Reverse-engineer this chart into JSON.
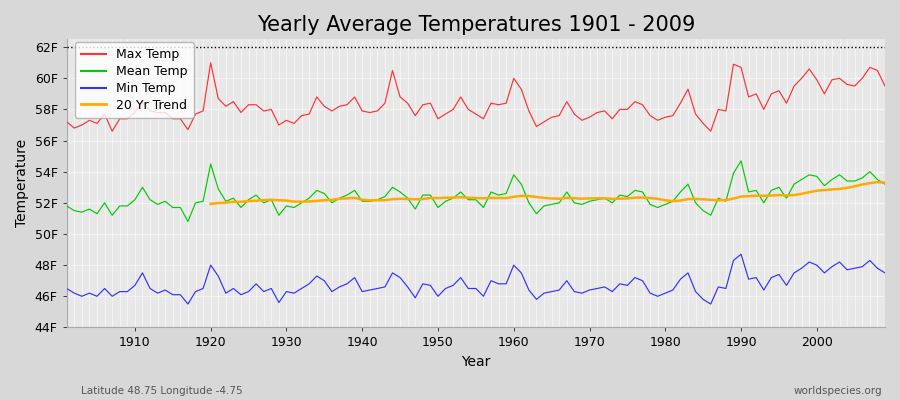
{
  "title": "Yearly Average Temperatures 1901 - 2009",
  "xlabel": "Year",
  "ylabel": "Temperature",
  "subtitle_left": "Latitude 48.75 Longitude -4.75",
  "subtitle_right": "worldspecies.org",
  "years": [
    1901,
    1902,
    1903,
    1904,
    1905,
    1906,
    1907,
    1908,
    1909,
    1910,
    1911,
    1912,
    1913,
    1914,
    1915,
    1916,
    1917,
    1918,
    1919,
    1920,
    1921,
    1922,
    1923,
    1924,
    1925,
    1926,
    1927,
    1928,
    1929,
    1930,
    1931,
    1932,
    1933,
    1934,
    1935,
    1936,
    1937,
    1938,
    1939,
    1940,
    1941,
    1942,
    1943,
    1944,
    1945,
    1946,
    1947,
    1948,
    1949,
    1950,
    1951,
    1952,
    1953,
    1954,
    1955,
    1956,
    1957,
    1958,
    1959,
    1960,
    1961,
    1962,
    1963,
    1964,
    1965,
    1966,
    1967,
    1968,
    1969,
    1970,
    1971,
    1972,
    1973,
    1974,
    1975,
    1976,
    1977,
    1978,
    1979,
    1980,
    1981,
    1982,
    1983,
    1984,
    1985,
    1986,
    1987,
    1988,
    1989,
    1990,
    1991,
    1992,
    1993,
    1994,
    1995,
    1996,
    1997,
    1998,
    1999,
    2000,
    2001,
    2002,
    2003,
    2004,
    2005,
    2006,
    2007,
    2008,
    2009
  ],
  "max_temp": [
    57.2,
    56.8,
    57.0,
    57.3,
    57.1,
    57.7,
    56.6,
    57.4,
    57.4,
    57.8,
    58.5,
    57.9,
    57.8,
    57.8,
    57.4,
    57.4,
    56.7,
    57.7,
    57.9,
    61.0,
    58.7,
    58.2,
    58.5,
    57.8,
    58.3,
    58.3,
    57.9,
    58.0,
    57.0,
    57.3,
    57.1,
    57.6,
    57.7,
    58.8,
    58.2,
    57.9,
    58.2,
    58.3,
    58.8,
    57.9,
    57.8,
    57.9,
    58.4,
    60.5,
    58.8,
    58.4,
    57.6,
    58.3,
    58.4,
    57.4,
    57.7,
    58.0,
    58.8,
    58.0,
    57.7,
    57.4,
    58.4,
    58.3,
    58.4,
    60.0,
    59.3,
    57.9,
    56.9,
    57.2,
    57.5,
    57.6,
    58.5,
    57.7,
    57.3,
    57.5,
    57.8,
    57.9,
    57.4,
    58.0,
    58.0,
    58.5,
    58.3,
    57.6,
    57.3,
    57.5,
    57.6,
    58.4,
    59.3,
    57.7,
    57.1,
    56.6,
    58.0,
    57.9,
    60.9,
    60.7,
    58.8,
    59.0,
    58.0,
    59.0,
    59.2,
    58.4,
    59.5,
    60.0,
    60.6,
    59.9,
    59.0,
    59.9,
    60.0,
    59.6,
    59.5,
    60.0,
    60.7,
    60.5,
    59.5
  ],
  "mean_temp": [
    51.8,
    51.5,
    51.4,
    51.6,
    51.3,
    52.0,
    51.2,
    51.8,
    51.8,
    52.2,
    53.0,
    52.2,
    51.9,
    52.1,
    51.7,
    51.7,
    50.8,
    52.0,
    52.1,
    54.5,
    52.9,
    52.1,
    52.3,
    51.7,
    52.2,
    52.5,
    52.0,
    52.2,
    51.2,
    51.8,
    51.7,
    52.0,
    52.3,
    52.8,
    52.6,
    52.0,
    52.3,
    52.5,
    52.8,
    52.1,
    52.1,
    52.2,
    52.4,
    53.0,
    52.7,
    52.3,
    51.6,
    52.5,
    52.5,
    51.7,
    52.1,
    52.3,
    52.7,
    52.2,
    52.2,
    51.7,
    52.7,
    52.5,
    52.6,
    53.8,
    53.2,
    52.0,
    51.3,
    51.8,
    51.9,
    52.0,
    52.7,
    52.0,
    51.9,
    52.1,
    52.2,
    52.3,
    52.0,
    52.5,
    52.4,
    52.8,
    52.7,
    51.9,
    51.7,
    51.9,
    52.1,
    52.7,
    53.2,
    52.0,
    51.5,
    51.2,
    52.3,
    52.1,
    53.9,
    54.7,
    52.7,
    52.8,
    52.0,
    52.8,
    53.0,
    52.3,
    53.2,
    53.5,
    53.8,
    53.7,
    53.1,
    53.5,
    53.8,
    53.4,
    53.4,
    53.6,
    54.0,
    53.5,
    53.2
  ],
  "min_temp": [
    46.5,
    46.2,
    46.0,
    46.2,
    46.0,
    46.5,
    46.0,
    46.3,
    46.3,
    46.7,
    47.5,
    46.5,
    46.2,
    46.4,
    46.1,
    46.1,
    45.5,
    46.3,
    46.5,
    48.0,
    47.3,
    46.2,
    46.5,
    46.1,
    46.3,
    46.8,
    46.3,
    46.5,
    45.6,
    46.3,
    46.2,
    46.5,
    46.8,
    47.3,
    47.0,
    46.3,
    46.6,
    46.8,
    47.2,
    46.3,
    46.4,
    46.5,
    46.6,
    47.5,
    47.2,
    46.6,
    45.9,
    46.8,
    46.7,
    46.0,
    46.5,
    46.7,
    47.2,
    46.5,
    46.5,
    46.0,
    47.0,
    46.8,
    46.8,
    48.0,
    47.5,
    46.4,
    45.8,
    46.2,
    46.3,
    46.4,
    47.0,
    46.3,
    46.2,
    46.4,
    46.5,
    46.6,
    46.3,
    46.8,
    46.7,
    47.2,
    47.0,
    46.2,
    46.0,
    46.2,
    46.4,
    47.1,
    47.5,
    46.3,
    45.8,
    45.5,
    46.6,
    46.5,
    48.3,
    48.7,
    47.1,
    47.2,
    46.4,
    47.2,
    47.4,
    46.7,
    47.5,
    47.8,
    48.2,
    48.0,
    47.5,
    47.9,
    48.2,
    47.7,
    47.8,
    47.9,
    48.3,
    47.8,
    47.5
  ],
  "ylim": [
    44,
    62.5
  ],
  "yticks": [
    44,
    46,
    48,
    50,
    52,
    54,
    56,
    58,
    60,
    62
  ],
  "ytick_labels": [
    "44F",
    "46F",
    "48F",
    "50F",
    "52F",
    "54F",
    "56F",
    "58F",
    "60F",
    "62F"
  ],
  "xticks": [
    1910,
    1920,
    1930,
    1940,
    1950,
    1960,
    1970,
    1980,
    1990,
    2000
  ],
  "xlim": [
    1901,
    2009
  ],
  "hline_y": 62,
  "max_color": "#ff3333",
  "mean_color": "#00cc00",
  "min_color": "#3333ff",
  "trend_color": "#ffaa00",
  "background_color": "#d8d8d8",
  "plot_bg_color": "#e8e8e8",
  "grid_color": "#cccccc",
  "title_fontsize": 15,
  "axis_label_fontsize": 10,
  "tick_fontsize": 9,
  "legend_fontsize": 9,
  "trend_window": 20
}
